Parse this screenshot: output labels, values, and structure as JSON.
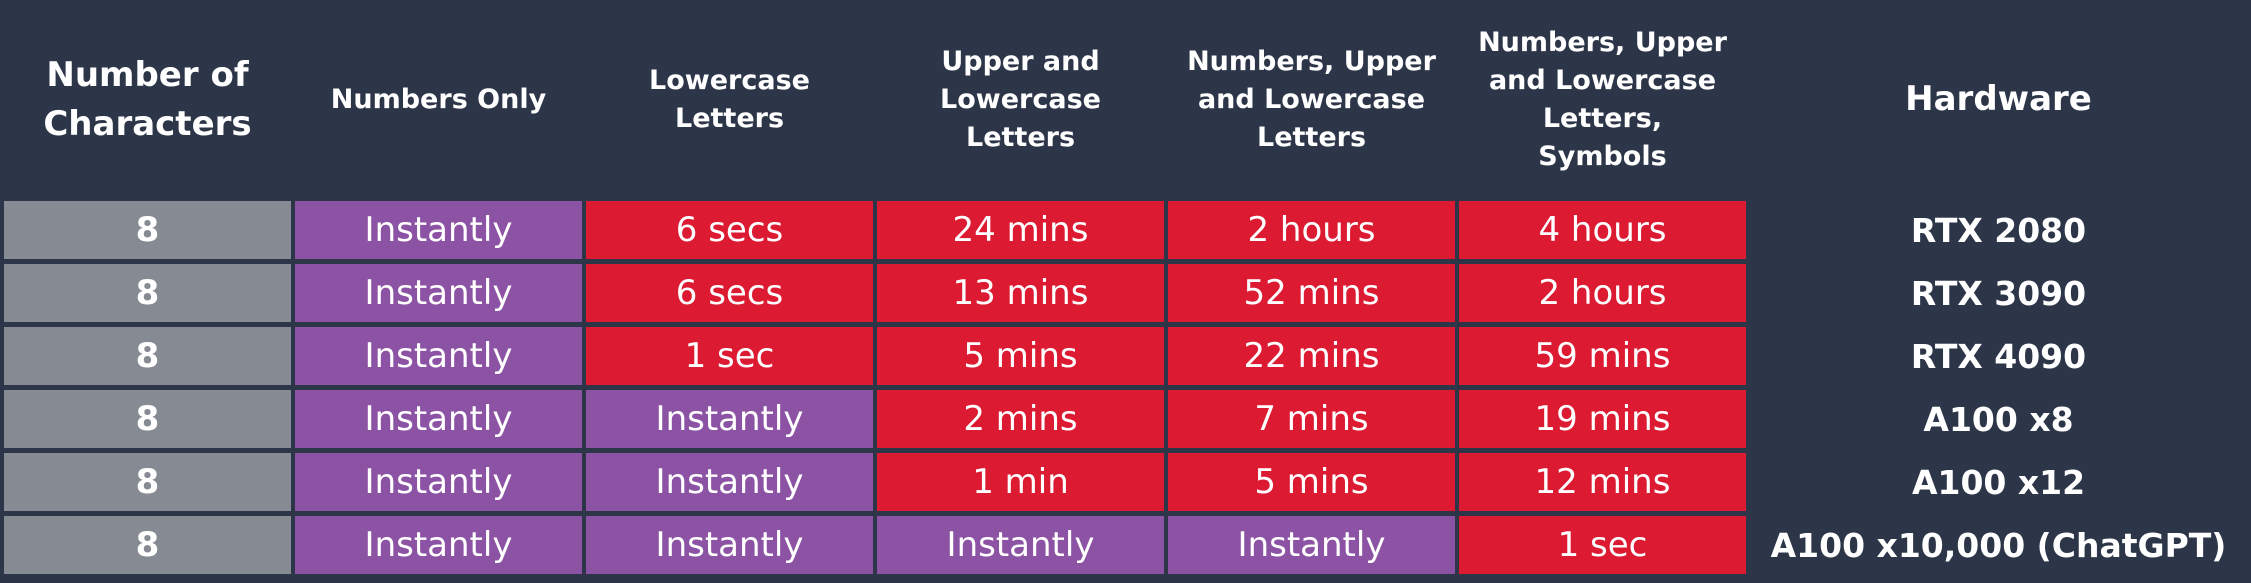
{
  "table": {
    "header": [
      "Number of Characters",
      "Numbers Only",
      "Lowercase Letters",
      "Upper and Lowercase Letters",
      "Numbers, Upper and Lowercase Letters",
      "Numbers, Upper and Lowercase Letters, Symbols",
      "Hardware"
    ],
    "rows": [
      [
        8,
        "Instantly",
        "6 secs",
        "24 mins",
        "2 hours",
        "4 hours",
        "RTX 2080"
      ],
      [
        8,
        "Instantly",
        "6 secs",
        "13 mins",
        "52 mins",
        "2 hours",
        "RTX 3090"
      ],
      [
        8,
        "Instantly",
        "1 sec",
        "5 mins",
        "22 mins",
        "59 mins",
        "RTX 4090"
      ],
      [
        8,
        "Instantly",
        "Instantly",
        "2 mins",
        "7 mins",
        "19 mins",
        "A100 x8"
      ],
      [
        8,
        "Instantly",
        "Instantly",
        "1 min",
        "5 mins",
        "12 mins",
        "A100 x12"
      ],
      [
        8,
        "Instantly",
        "Instantly",
        "Instantly",
        "Instantly",
        "1 sec",
        "A100 x10,000 (ChatGPT)"
      ]
    ]
  }
}
